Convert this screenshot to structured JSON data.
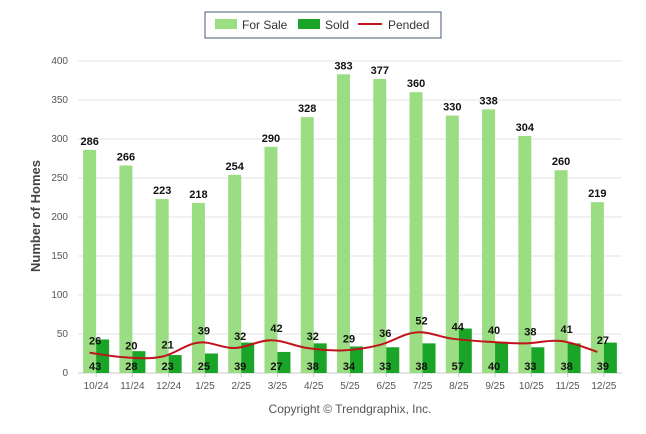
{
  "chart_data": {
    "type": "bar",
    "categories": [
      "10/24",
      "11/24",
      "12/24",
      "1/25",
      "2/25",
      "3/25",
      "4/25",
      "5/25",
      "6/25",
      "7/25",
      "8/25",
      "9/25",
      "10/25",
      "11/25",
      "12/25"
    ],
    "series": [
      {
        "name": "For Sale",
        "type": "bar",
        "color": "#9bdd82",
        "values": [
          286,
          266,
          223,
          218,
          254,
          290,
          328,
          383,
          377,
          360,
          330,
          338,
          304,
          260,
          219
        ]
      },
      {
        "name": "Sold",
        "type": "bar",
        "color": "#1aa528",
        "values": [
          43,
          28,
          23,
          25,
          39,
          27,
          38,
          34,
          33,
          38,
          57,
          40,
          33,
          38,
          39
        ]
      },
      {
        "name": "Pended",
        "type": "line",
        "color": "#c0131b",
        "values": [
          26,
          20,
          21,
          39,
          32,
          42,
          32,
          29,
          36,
          52,
          44,
          40,
          38,
          41,
          27
        ]
      }
    ],
    "ylabel": "Number of Homes",
    "ylim": [
      0,
      400
    ],
    "yticks": [
      0,
      50,
      100,
      150,
      200,
      250,
      300,
      350,
      400
    ],
    "grid": true,
    "legend": "top-center"
  },
  "footer": {
    "copyright": "Copyright © Trendgraphix, Inc."
  }
}
